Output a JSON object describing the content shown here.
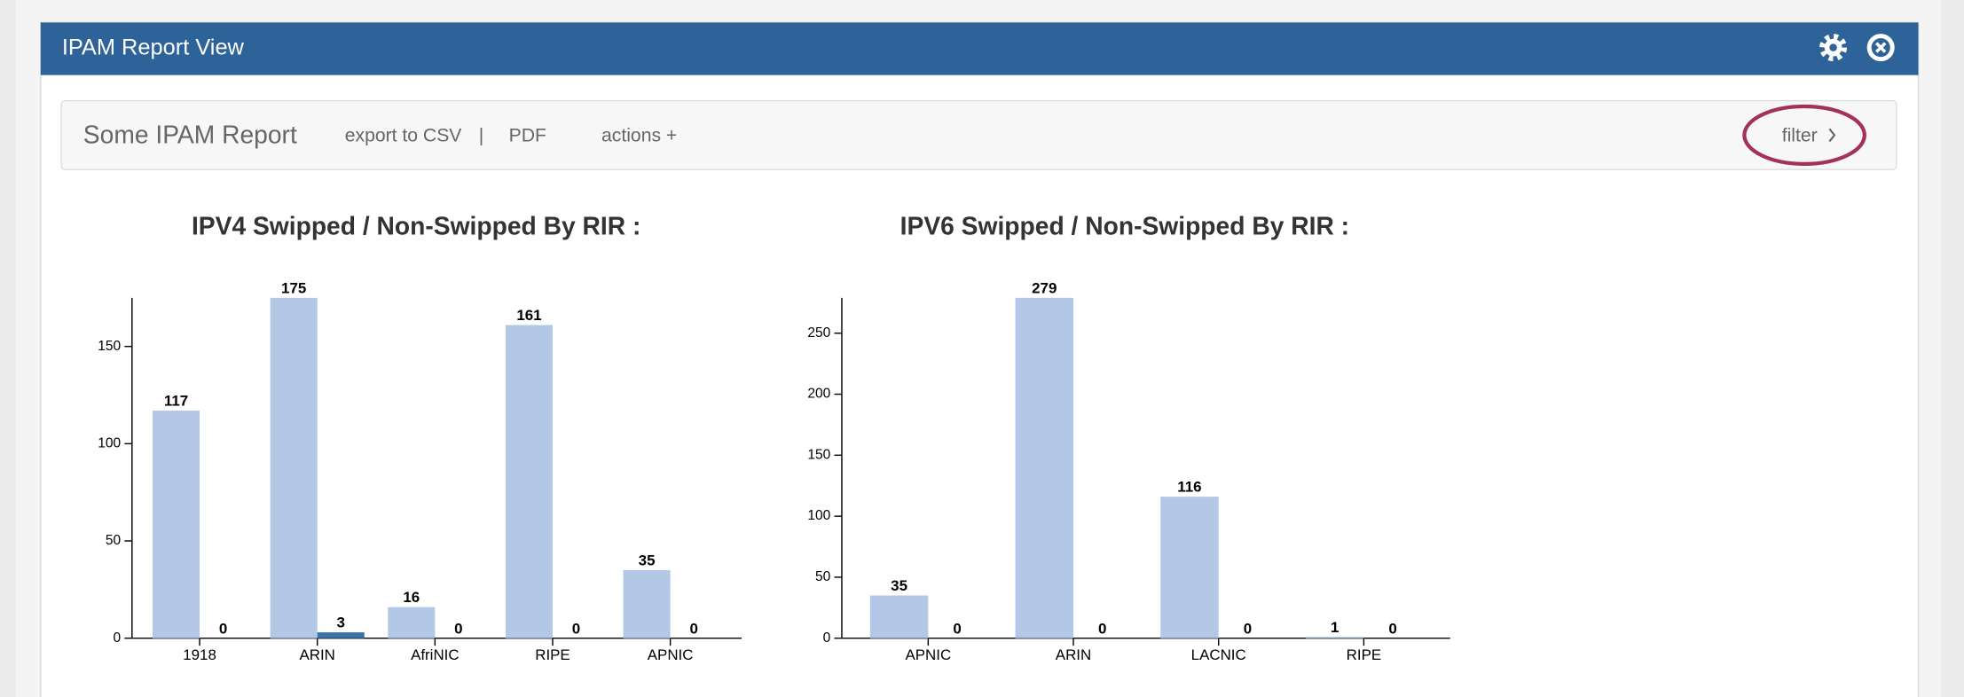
{
  "header": {
    "title": "IPAM Report View"
  },
  "toolbar": {
    "report_name": "Some IPAM Report",
    "export_csv": "export to CSV",
    "separator": "|",
    "pdf": "PDF",
    "actions": "actions +",
    "filter": "filter"
  },
  "chart_data": [
    {
      "type": "bar",
      "title": "IPV4 Swipped / Non-Swipped By RIR :",
      "categories": [
        "1918",
        "ARIN",
        "AfriNIC",
        "RIPE",
        "APNIC"
      ],
      "series": [
        {
          "color": "#b3c7e6",
          "values": [
            117,
            175,
            16,
            161,
            35
          ]
        },
        {
          "color": "#3a73a6",
          "values": [
            0,
            3,
            0,
            0,
            0
          ]
        }
      ],
      "ylim": [
        0,
        175
      ],
      "yticks": [
        0,
        50,
        100,
        150
      ]
    },
    {
      "type": "bar",
      "title": "IPV6 Swipped / Non-Swipped By RIR :",
      "categories": [
        "APNIC",
        "ARIN",
        "LACNIC",
        "RIPE"
      ],
      "series": [
        {
          "color": "#b3c7e6",
          "values": [
            35,
            279,
            116,
            1
          ]
        },
        {
          "color": "#3a73a6",
          "values": [
            0,
            0,
            0,
            0
          ]
        }
      ],
      "ylim": [
        0,
        279
      ],
      "yticks": [
        0,
        50,
        100,
        150,
        200,
        250
      ]
    }
  ]
}
